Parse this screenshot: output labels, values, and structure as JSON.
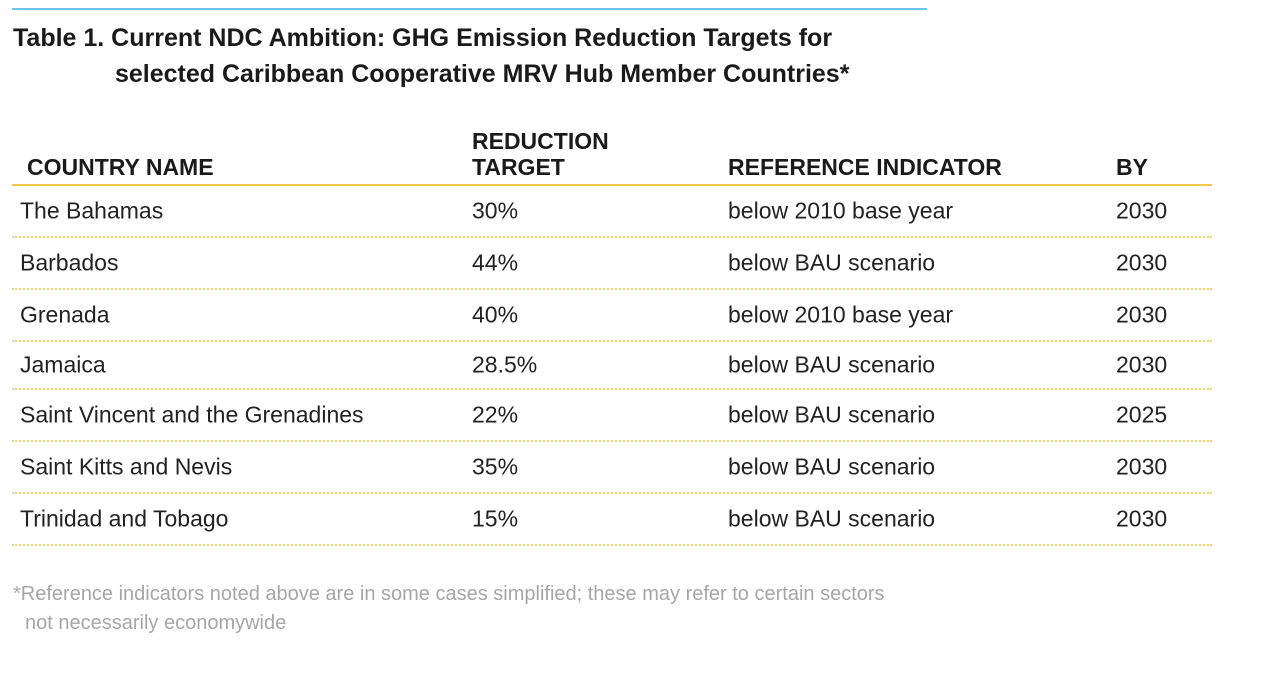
{
  "title": {
    "line1": "Table 1. Current NDC Ambition:  GHG Emission Reduction Targets for",
    "line2": "selected Caribbean Cooperative MRV Hub Member Countries*"
  },
  "columns": {
    "country": "COUNTRY NAME",
    "target_line1": "REDUCTION",
    "target_line2": "TARGET",
    "reference": "REFERENCE INDICATOR",
    "by": "BY"
  },
  "rows": [
    {
      "country": "The Bahamas",
      "target": "30%",
      "reference": "below 2010 base year",
      "by": "2030"
    },
    {
      "country": "Barbados",
      "target": "44%",
      "reference": "below BAU scenario",
      "by": "2030"
    },
    {
      "country": "Grenada",
      "target": "40%",
      "reference": "below 2010 base year",
      "by": "2030"
    },
    {
      "country": "Jamaica",
      "target": "28.5%",
      "reference": "below BAU scenario",
      "by": "2030"
    },
    {
      "country": "Saint Vincent and the Grenadines",
      "target": "22%",
      "reference": "below BAU scenario",
      "by": "2025"
    },
    {
      "country": "Saint Kitts and Nevis",
      "target": "35%",
      "reference": "below BAU scenario",
      "by": "2030"
    },
    {
      "country": "Trinidad and Tobago",
      "target": "15%",
      "reference": "below BAU scenario",
      "by": "2030"
    }
  ],
  "footnote": {
    "line1": "*Reference indicators noted above are in some cases simplified; these may refer to certain sectors",
    "line2": "not necessarily economywide"
  },
  "colors": {
    "top_rule": "#6fc3e6",
    "header_rule": "#f0c84a",
    "row_rule": "#f0d277",
    "footnote_text": "#a6a6a6"
  }
}
